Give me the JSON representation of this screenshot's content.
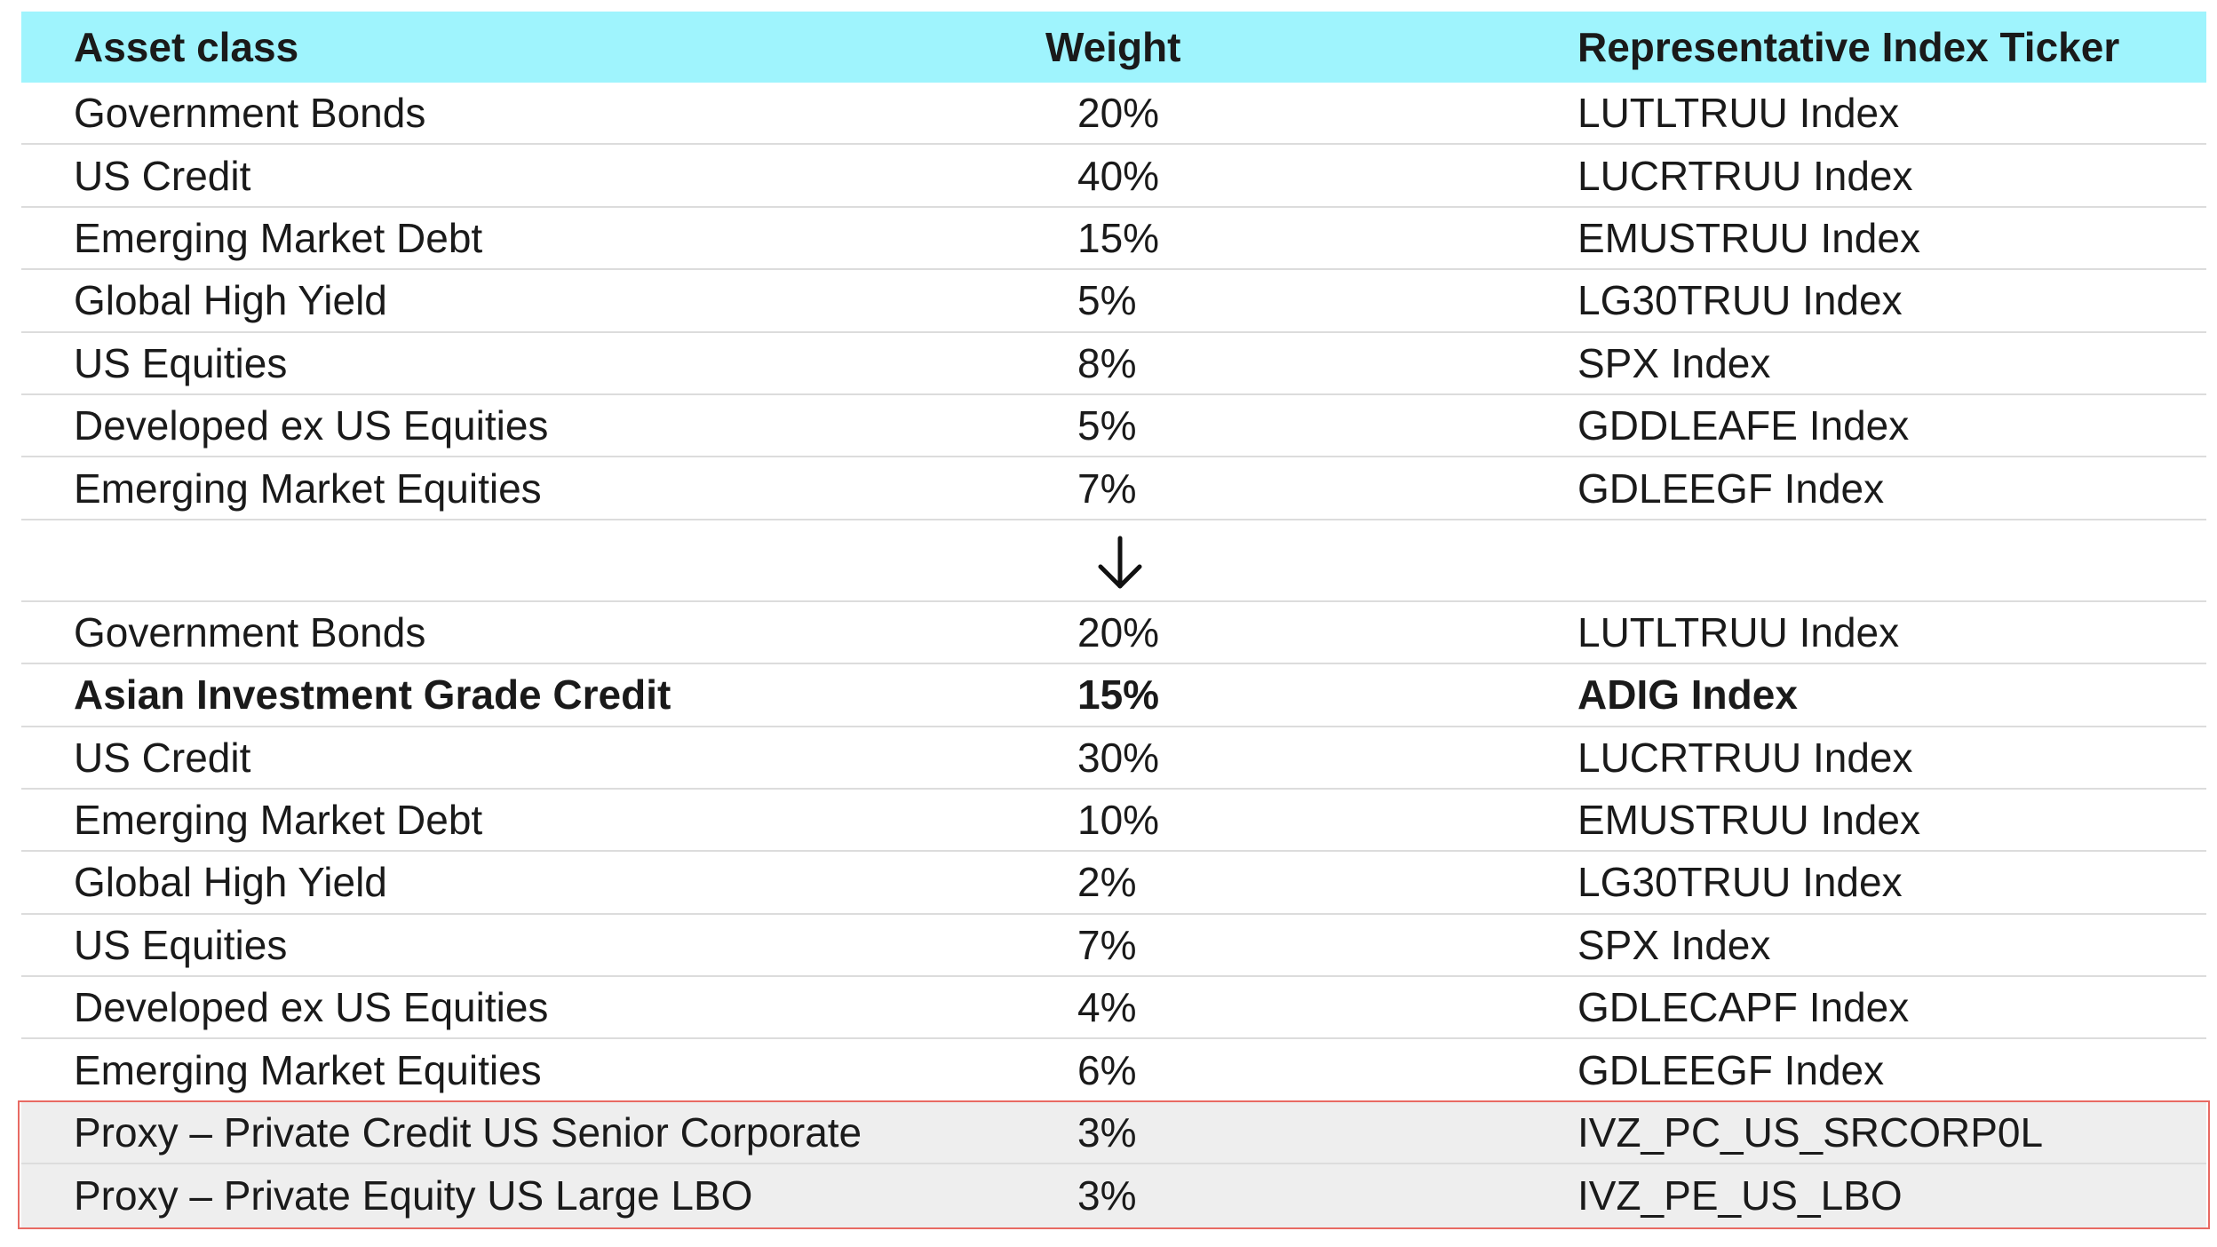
{
  "header": {
    "asset_class": "Asset class",
    "weight": "Weight",
    "ticker": "Representative Index Ticker"
  },
  "before_rows": [
    {
      "asset": "Government Bonds",
      "weight": "20%",
      "ticker": "LUTLTRUU Index"
    },
    {
      "asset": "US Credit",
      "weight": "40%",
      "ticker": "LUCRTRUU Index"
    },
    {
      "asset": "Emerging Market Debt",
      "weight": "15%",
      "ticker": "EMUSTRUU Index"
    },
    {
      "asset": "Global High Yield",
      "weight": "5%",
      "ticker": "LG30TRUU Index"
    },
    {
      "asset": "US Equities",
      "weight": "8%",
      "ticker": "SPX Index"
    },
    {
      "asset": "Developed ex US Equities",
      "weight": "5%",
      "ticker": "GDDLEAFE Index"
    },
    {
      "asset": "Emerging Market Equities",
      "weight": "7%",
      "ticker": "GDLEEGF Index"
    }
  ],
  "arrow_icon": "arrow-down-icon",
  "after_rows": [
    {
      "asset": "Government Bonds",
      "weight": "20%",
      "ticker": "LUTLTRUU Index"
    },
    {
      "asset": "Asian Investment Grade Credit",
      "weight": "15%",
      "ticker": "ADIG Index"
    },
    {
      "asset": "US Credit",
      "weight": "30%",
      "ticker": "LUCRTRUU Index"
    },
    {
      "asset": "Emerging Market Debt",
      "weight": "10%",
      "ticker": "EMUSTRUU Index"
    },
    {
      "asset": "Global High Yield",
      "weight": "2%",
      "ticker": "LG30TRUU Index"
    },
    {
      "asset": "US Equities",
      "weight": "7%",
      "ticker": "SPX Index"
    },
    {
      "asset": "Developed ex US Equities",
      "weight": "4%",
      "ticker": "GDLECAPF Index"
    },
    {
      "asset": "Emerging Market Equities",
      "weight": "6%",
      "ticker": "GDLEEGF Index"
    },
    {
      "asset": "Proxy – Private Credit US Senior Corporate",
      "weight": "3%",
      "ticker": "IVZ_PC_US_SRCORP0L"
    },
    {
      "asset": "Proxy – Private Equity US Large LBO",
      "weight": "3%",
      "ticker": "IVZ_PE_US_LBO"
    }
  ],
  "colors": {
    "header_bg": "#9ff4fd",
    "proxy_bg": "#eeeeee",
    "highlight_border": "#e86a63"
  }
}
